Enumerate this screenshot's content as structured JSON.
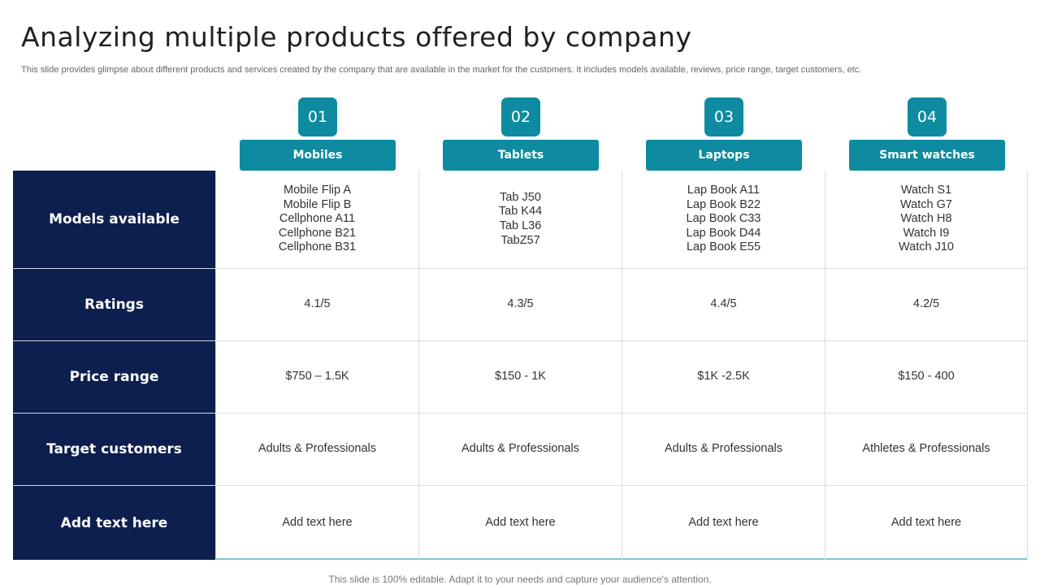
{
  "title": "Analyzing multiple products offered by company",
  "subtitle": "This slide provides glimpse about different products and services created by the company that are available in the market for the customers. It includes models available, reviews, price range, target customers, etc.",
  "products": [
    {
      "number": "01",
      "name": "Mobiles",
      "models": [
        "Mobile Flip A",
        "Mobile Flip B",
        "Cellphone A11",
        "Cellphone B21",
        "Cellphone B31"
      ],
      "rating": "4.1/5",
      "price_range": "$750 – 1.5K",
      "target": "Adults & Professionals",
      "extra": "Add text here"
    },
    {
      "number": "02",
      "name": "Tablets",
      "models": [
        "Tab J50",
        "Tab K44",
        "Tab L36",
        "TabZ57"
      ],
      "rating": "4.3/5",
      "price_range": "$150 - 1K",
      "target": "Adults & Professionals",
      "extra": "Add text here"
    },
    {
      "number": "03",
      "name": "Laptops",
      "models": [
        "Lap Book A11",
        "Lap Book B22",
        "Lap Book C33",
        "Lap Book D44",
        "Lap Book E55"
      ],
      "rating": "4.4/5",
      "price_range": "$1K -2.5K",
      "target": "Adults & Professionals",
      "extra": "Add text here"
    },
    {
      "number": "04",
      "name": "Smart watches",
      "models": [
        "Watch S1",
        "Watch G7",
        "Watch H8",
        "Watch I9",
        "Watch J10"
      ],
      "rating": "4.2/5",
      "price_range": "$150 - 400",
      "target": "Athletes & Professionals",
      "extra": "Add text here"
    }
  ],
  "row_labels": {
    "models": "Models available",
    "ratings": "Ratings",
    "price": "Price range",
    "target": "Target customers",
    "extra": "Add text here"
  },
  "footer": "This slide is 100% editable. Adapt it to your needs and capture your audience's attention.",
  "colors": {
    "teal": "#0e8ba0",
    "navy": "#0c1f4e"
  }
}
